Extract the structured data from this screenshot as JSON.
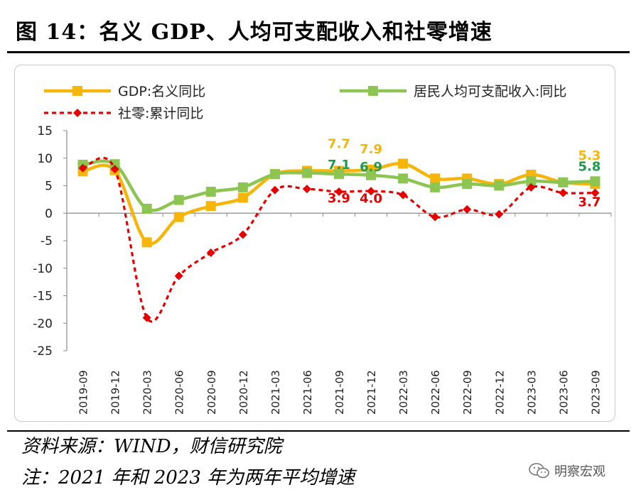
{
  "figure": {
    "title": "图 14：名义 GDP、人均可支配收入和社零增速",
    "source": "资料来源：WIND，财信研究院",
    "note": "注：2021 年和 2023 年为两年平均增速",
    "watermark": "明察宏观",
    "watermark_icon": "wechat-icon"
  },
  "chart_data": {
    "type": "line",
    "categories": [
      "2019-09",
      "2019-12",
      "2020-03",
      "2020-06",
      "2020-09",
      "2020-12",
      "2021-03",
      "2021-06",
      "2021-09",
      "2021-12",
      "2022-03",
      "2022-06",
      "2022-09",
      "2022-12",
      "2023-03",
      "2023-06",
      "2023-09"
    ],
    "ylim": [
      -25,
      15
    ],
    "yticks": [
      15,
      10,
      5,
      0,
      -5,
      -10,
      -15,
      -20,
      -25
    ],
    "xlabel": "",
    "ylabel": "",
    "grid": false,
    "legend_position": "top",
    "series": [
      {
        "name": "GDP:名义同比",
        "color": "#f5b50a",
        "marker": "square",
        "style": "solid",
        "values": [
          7.6,
          7.8,
          -5.3,
          -0.7,
          1.3,
          2.8,
          7.1,
          7.7,
          7.7,
          7.9,
          9.0,
          6.3,
          6.3,
          5.3,
          7.0,
          5.6,
          5.3
        ]
      },
      {
        "name": "居民人均可支配收入:同比",
        "color": "#8cc552",
        "marker": "square",
        "style": "solid",
        "values": [
          8.8,
          8.9,
          0.8,
          2.4,
          3.9,
          4.7,
          7.1,
          7.3,
          7.1,
          6.9,
          6.3,
          4.7,
          5.3,
          5.0,
          5.8,
          5.6,
          5.8
        ]
      },
      {
        "name": "社零:累计同比",
        "color": "#e60000",
        "marker": "diamond",
        "style": "dashed",
        "values": [
          8.2,
          8.0,
          -19.0,
          -11.4,
          -7.2,
          -3.9,
          4.2,
          4.4,
          3.9,
          4.0,
          3.3,
          -0.7,
          0.7,
          -0.2,
          4.7,
          3.7,
          3.7
        ]
      }
    ],
    "annotations": [
      {
        "series": 0,
        "index": 8,
        "text": "7.7",
        "color": "#f5b50a"
      },
      {
        "series": 1,
        "index": 8,
        "text": "7.1",
        "color": "#1f9a4a"
      },
      {
        "series": 2,
        "index": 8,
        "text": "3.9",
        "color": "#e60000"
      },
      {
        "series": 0,
        "index": 9,
        "text": "7.9",
        "color": "#f5b50a"
      },
      {
        "series": 1,
        "index": 9,
        "text": "6.9",
        "color": "#1f9a4a"
      },
      {
        "series": 2,
        "index": 9,
        "text": "4.0",
        "color": "#e60000"
      },
      {
        "series": 0,
        "index": 16,
        "text": "5.3",
        "color": "#f5b50a"
      },
      {
        "series": 1,
        "index": 16,
        "text": "5.8",
        "color": "#1f9a4a"
      },
      {
        "series": 2,
        "index": 16,
        "text": "3.7",
        "color": "#e60000"
      }
    ]
  }
}
